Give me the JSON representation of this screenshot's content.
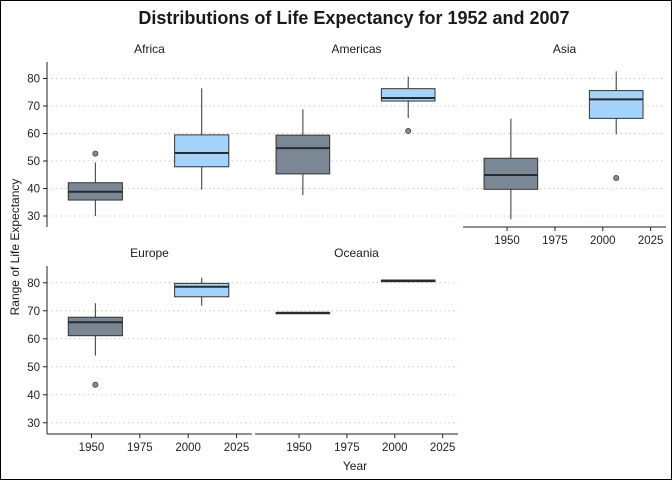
{
  "chart_data": {
    "type": "box",
    "title": "Distributions of Life Expectancy for 1952 and 2007",
    "xlabel": "Year",
    "ylabel": "Range of Life Expectancy",
    "xlim": [
      1927,
      2033
    ],
    "ylim": [
      26,
      86
    ],
    "x_ticks": [
      1950,
      1975,
      2000,
      2025
    ],
    "y_ticks": [
      30,
      40,
      50,
      60,
      70,
      80
    ],
    "grid": "horizontal dotted",
    "colors": {
      "1952": "#7a8795",
      "2007": "#a4d4fb"
    },
    "box_width_years": 14,
    "panels": [
      {
        "label": "Africa",
        "boxes": [
          {
            "year": 1952,
            "fill": "#7a8795",
            "min": 30,
            "q1": 35.8,
            "median": 38.8,
            "q3": 42.1,
            "max": 49.5,
            "outliers": [
              52.7
            ]
          },
          {
            "year": 2007,
            "fill": "#a4d4fb",
            "min": 39.6,
            "q1": 47.9,
            "median": 52.9,
            "q3": 59.5,
            "max": 76.4,
            "outliers": []
          }
        ]
      },
      {
        "label": "Americas",
        "boxes": [
          {
            "year": 1952,
            "fill": "#7a8795",
            "min": 37.6,
            "q1": 45.3,
            "median": 54.7,
            "q3": 59.4,
            "max": 68.8,
            "outliers": []
          },
          {
            "year": 2007,
            "fill": "#a4d4fb",
            "min": 65.6,
            "q1": 71.8,
            "median": 72.9,
            "q3": 76.3,
            "max": 80.7,
            "outliers": [
              60.9
            ]
          }
        ]
      },
      {
        "label": "Asia",
        "boxes": [
          {
            "year": 1952,
            "fill": "#7a8795",
            "min": 28.8,
            "q1": 39.7,
            "median": 44.9,
            "q3": 51.0,
            "max": 65.4,
            "outliers": []
          },
          {
            "year": 2007,
            "fill": "#a4d4fb",
            "min": 59.7,
            "q1": 65.5,
            "median": 72.4,
            "q3": 75.6,
            "max": 82.6,
            "outliers": [
              43.8
            ]
          }
        ]
      },
      {
        "label": "Europe",
        "boxes": [
          {
            "year": 1952,
            "fill": "#7a8795",
            "min": 54.0,
            "q1": 61.1,
            "median": 65.9,
            "q3": 67.7,
            "max": 72.7,
            "outliers": [
              43.6
            ]
          },
          {
            "year": 2007,
            "fill": "#a4d4fb",
            "min": 71.8,
            "q1": 75.0,
            "median": 78.6,
            "q3": 79.8,
            "max": 81.8,
            "outliers": []
          }
        ]
      },
      {
        "label": "Oceania",
        "boxes": [
          {
            "year": 1952,
            "fill": "#7a8795",
            "min": 69.1,
            "q1": 69.2,
            "median": 69.3,
            "q3": 69.3,
            "max": 69.4,
            "outliers": []
          },
          {
            "year": 2007,
            "fill": "#a4d4fb",
            "min": 80.2,
            "q1": 80.4,
            "median": 80.7,
            "q3": 81.0,
            "max": 81.2,
            "outliers": []
          }
        ]
      }
    ]
  }
}
